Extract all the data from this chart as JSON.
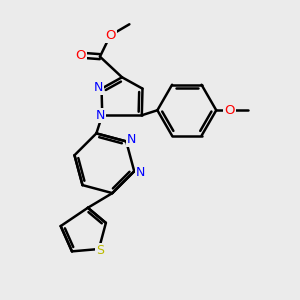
{
  "bg_color": "#ebebeb",
  "bond_color": "#000000",
  "bond_width": 1.8,
  "N_color": "#0000ff",
  "O_color": "#ff0000",
  "S_color": "#bbbb00",
  "C_color": "#000000",
  "font_size_atom": 8.5,
  "font_size_small": 7.0,
  "xlim": [
    0,
    10
  ],
  "ylim": [
    0,
    10
  ]
}
